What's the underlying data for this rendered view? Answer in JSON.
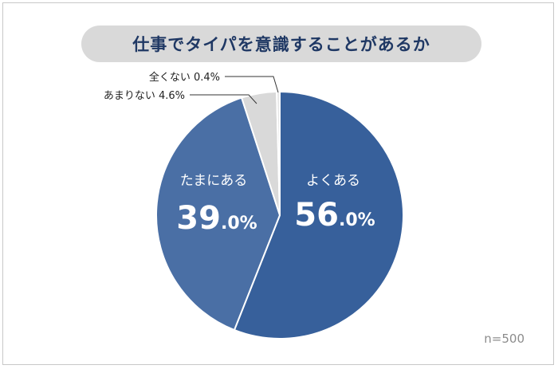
{
  "title": "仕事でタイパを意識することがあるか",
  "sample_size": "n=500",
  "colors": {
    "yoku": "#37609b",
    "tamani": "#4a6fa5",
    "amari": "#d9d9d9",
    "mattaku": "#e6e6e6",
    "title_bg": "#d9d9d9",
    "title_text": "#1f3864"
  },
  "chart_data": {
    "type": "pie",
    "title": "仕事でタイパを意識することがあるか",
    "slices": [
      {
        "label": "よくある",
        "value": 56.0,
        "value_int": "56",
        "value_dec": ".0%",
        "color": "#37609b"
      },
      {
        "label": "たまにある",
        "value": 39.0,
        "value_int": "39",
        "value_dec": ".0%",
        "color": "#4a6fa5"
      },
      {
        "label": "あまりない",
        "value": 4.6,
        "value_text": "4.6%",
        "color": "#d9d9d9"
      },
      {
        "label": "全くない",
        "value": 0.4,
        "value_text": "0.4%",
        "color": "#e6e6e6"
      }
    ],
    "start": "12 o'clock",
    "direction": "clockwise",
    "legend": "none"
  }
}
